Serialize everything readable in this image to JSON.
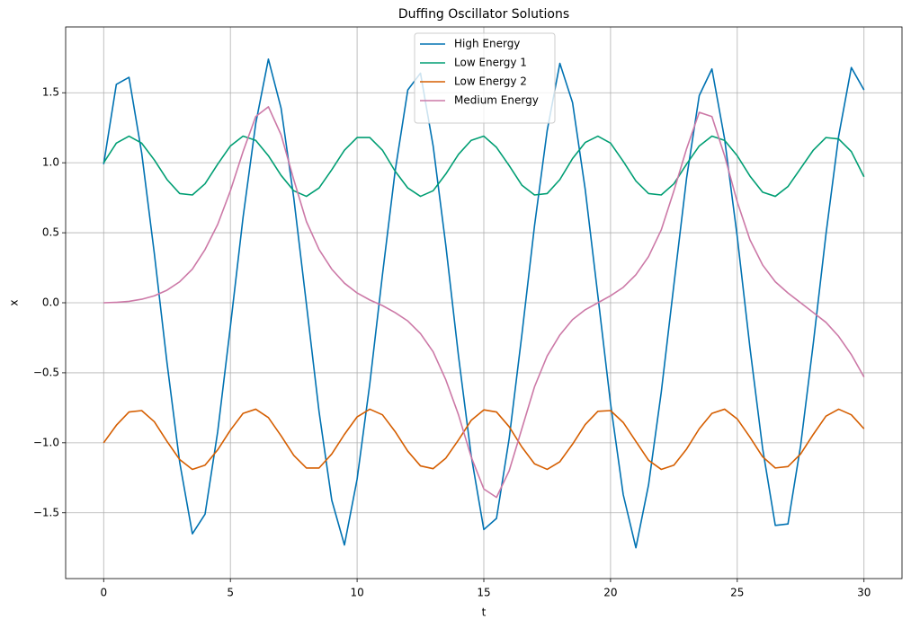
{
  "chart_data": {
    "type": "line",
    "title": "Duffing Oscillator Solutions",
    "x_label": "t",
    "y_label": "x",
    "x": [
      0,
      0.5,
      1,
      1.5,
      2,
      2.5,
      3,
      3.5,
      4,
      4.5,
      5,
      5.5,
      6,
      6.5,
      7,
      7.5,
      8,
      8.5,
      9,
      9.5,
      10,
      10.5,
      11,
      11.5,
      12,
      12.5,
      13,
      13.5,
      14,
      14.5,
      15,
      15.5,
      16,
      16.5,
      17,
      17.5,
      18,
      18.5,
      19,
      19.5,
      20,
      20.5,
      21,
      21.5,
      22,
      22.5,
      23,
      23.5,
      24,
      24.5,
      25,
      25.5,
      26,
      26.5,
      27,
      27.5,
      28,
      28.5,
      29,
      29.5,
      30
    ],
    "series": [
      {
        "name": "High Energy",
        "color": "#0072b2",
        "values": [
          0.99,
          1.56,
          1.61,
          1.07,
          0.35,
          -0.43,
          -1.14,
          -1.65,
          -1.51,
          -0.92,
          -0.17,
          0.61,
          1.28,
          1.74,
          1.39,
          0.75,
          -0.01,
          -0.78,
          -1.41,
          -1.73,
          -1.26,
          -0.58,
          0.2,
          0.94,
          1.52,
          1.64,
          1.12,
          0.41,
          -0.38,
          -1.09,
          -1.62,
          -1.54,
          -0.97,
          -0.23,
          0.55,
          1.23,
          1.71,
          1.43,
          0.81,
          0.05,
          -0.72,
          -1.37,
          -1.75,
          -1.3,
          -0.64,
          0.13,
          0.89,
          1.48,
          1.67,
          1.17,
          0.47,
          -0.32,
          -1.04,
          -1.59,
          -1.58,
          -1.02,
          -0.29,
          0.49,
          1.19,
          1.68,
          1.52
        ]
      },
      {
        "name": "Low Energy 1",
        "color": "#009e73",
        "values": [
          1.0,
          1.14,
          1.19,
          1.14,
          1.02,
          0.88,
          0.78,
          0.77,
          0.85,
          0.99,
          1.12,
          1.19,
          1.16,
          1.05,
          0.91,
          0.8,
          0.76,
          0.82,
          0.95,
          1.09,
          1.18,
          1.18,
          1.09,
          0.94,
          0.82,
          0.76,
          0.8,
          0.92,
          1.06,
          1.16,
          1.19,
          1.11,
          0.98,
          0.84,
          0.77,
          0.78,
          0.88,
          1.03,
          1.145,
          1.19,
          1.14,
          1.01,
          0.87,
          0.78,
          0.77,
          0.85,
          0.99,
          1.12,
          1.19,
          1.16,
          1.05,
          0.905,
          0.79,
          0.76,
          0.83,
          0.96,
          1.09,
          1.18,
          1.17,
          1.08,
          0.9
        ]
      },
      {
        "name": "Low Energy 2",
        "color": "#d55e00",
        "values": [
          -1.0,
          -0.875,
          -0.78,
          -0.77,
          -0.85,
          -0.99,
          -1.12,
          -1.19,
          -1.16,
          -1.05,
          -0.91,
          -0.79,
          -0.76,
          -0.82,
          -0.95,
          -1.09,
          -1.18,
          -1.18,
          -1.08,
          -0.94,
          -0.815,
          -0.76,
          -0.8,
          -0.92,
          -1.06,
          -1.165,
          -1.185,
          -1.11,
          -0.98,
          -0.84,
          -0.765,
          -0.78,
          -0.885,
          -1.03,
          -1.15,
          -1.19,
          -1.135,
          -1.01,
          -0.87,
          -0.775,
          -0.77,
          -0.855,
          -0.99,
          -1.125,
          -1.19,
          -1.16,
          -1.045,
          -0.9,
          -0.79,
          -0.76,
          -0.83,
          -0.96,
          -1.1,
          -1.18,
          -1.17,
          -1.08,
          -0.94,
          -0.81,
          -0.76,
          -0.8,
          -0.9
        ]
      },
      {
        "name": "Medium Energy",
        "color": "#cc79a7",
        "values": [
          0,
          0.003,
          0.01,
          0.025,
          0.05,
          0.09,
          0.15,
          0.24,
          0.38,
          0.56,
          0.8,
          1.08,
          1.33,
          1.4,
          1.2,
          0.88,
          0.58,
          0.38,
          0.24,
          0.14,
          0.07,
          0.02,
          -0.02,
          -0.07,
          -0.13,
          -0.22,
          -0.35,
          -0.55,
          -0.8,
          -1.1,
          -1.33,
          -1.39,
          -1.2,
          -0.9,
          -0.6,
          -0.38,
          -0.23,
          -0.12,
          -0.05,
          0,
          0.05,
          0.11,
          0.2,
          0.33,
          0.52,
          0.8,
          1.1,
          1.36,
          1.33,
          1.05,
          0.72,
          0.45,
          0.27,
          0.15,
          0.07,
          0,
          -0.07,
          -0.14,
          -0.24,
          -0.37,
          -0.53
        ]
      }
    ],
    "xlim": [
      -1.5,
      31.5
    ],
    "xticks": [
      0,
      5,
      10,
      15,
      20,
      25,
      30
    ],
    "ylim": [
      -1.97,
      1.97
    ],
    "yticks": [
      {
        "value": -1.5,
        "label": "−1.5"
      },
      {
        "value": -1.0,
        "label": "−1.0"
      },
      {
        "value": -0.5,
        "label": "−0.5"
      },
      {
        "value": 0,
        "label": "0.0"
      },
      0.5,
      {
        "value": 1.0,
        "label": "1.0"
      },
      1.5
    ],
    "grid": true,
    "legend": "upper center"
  }
}
